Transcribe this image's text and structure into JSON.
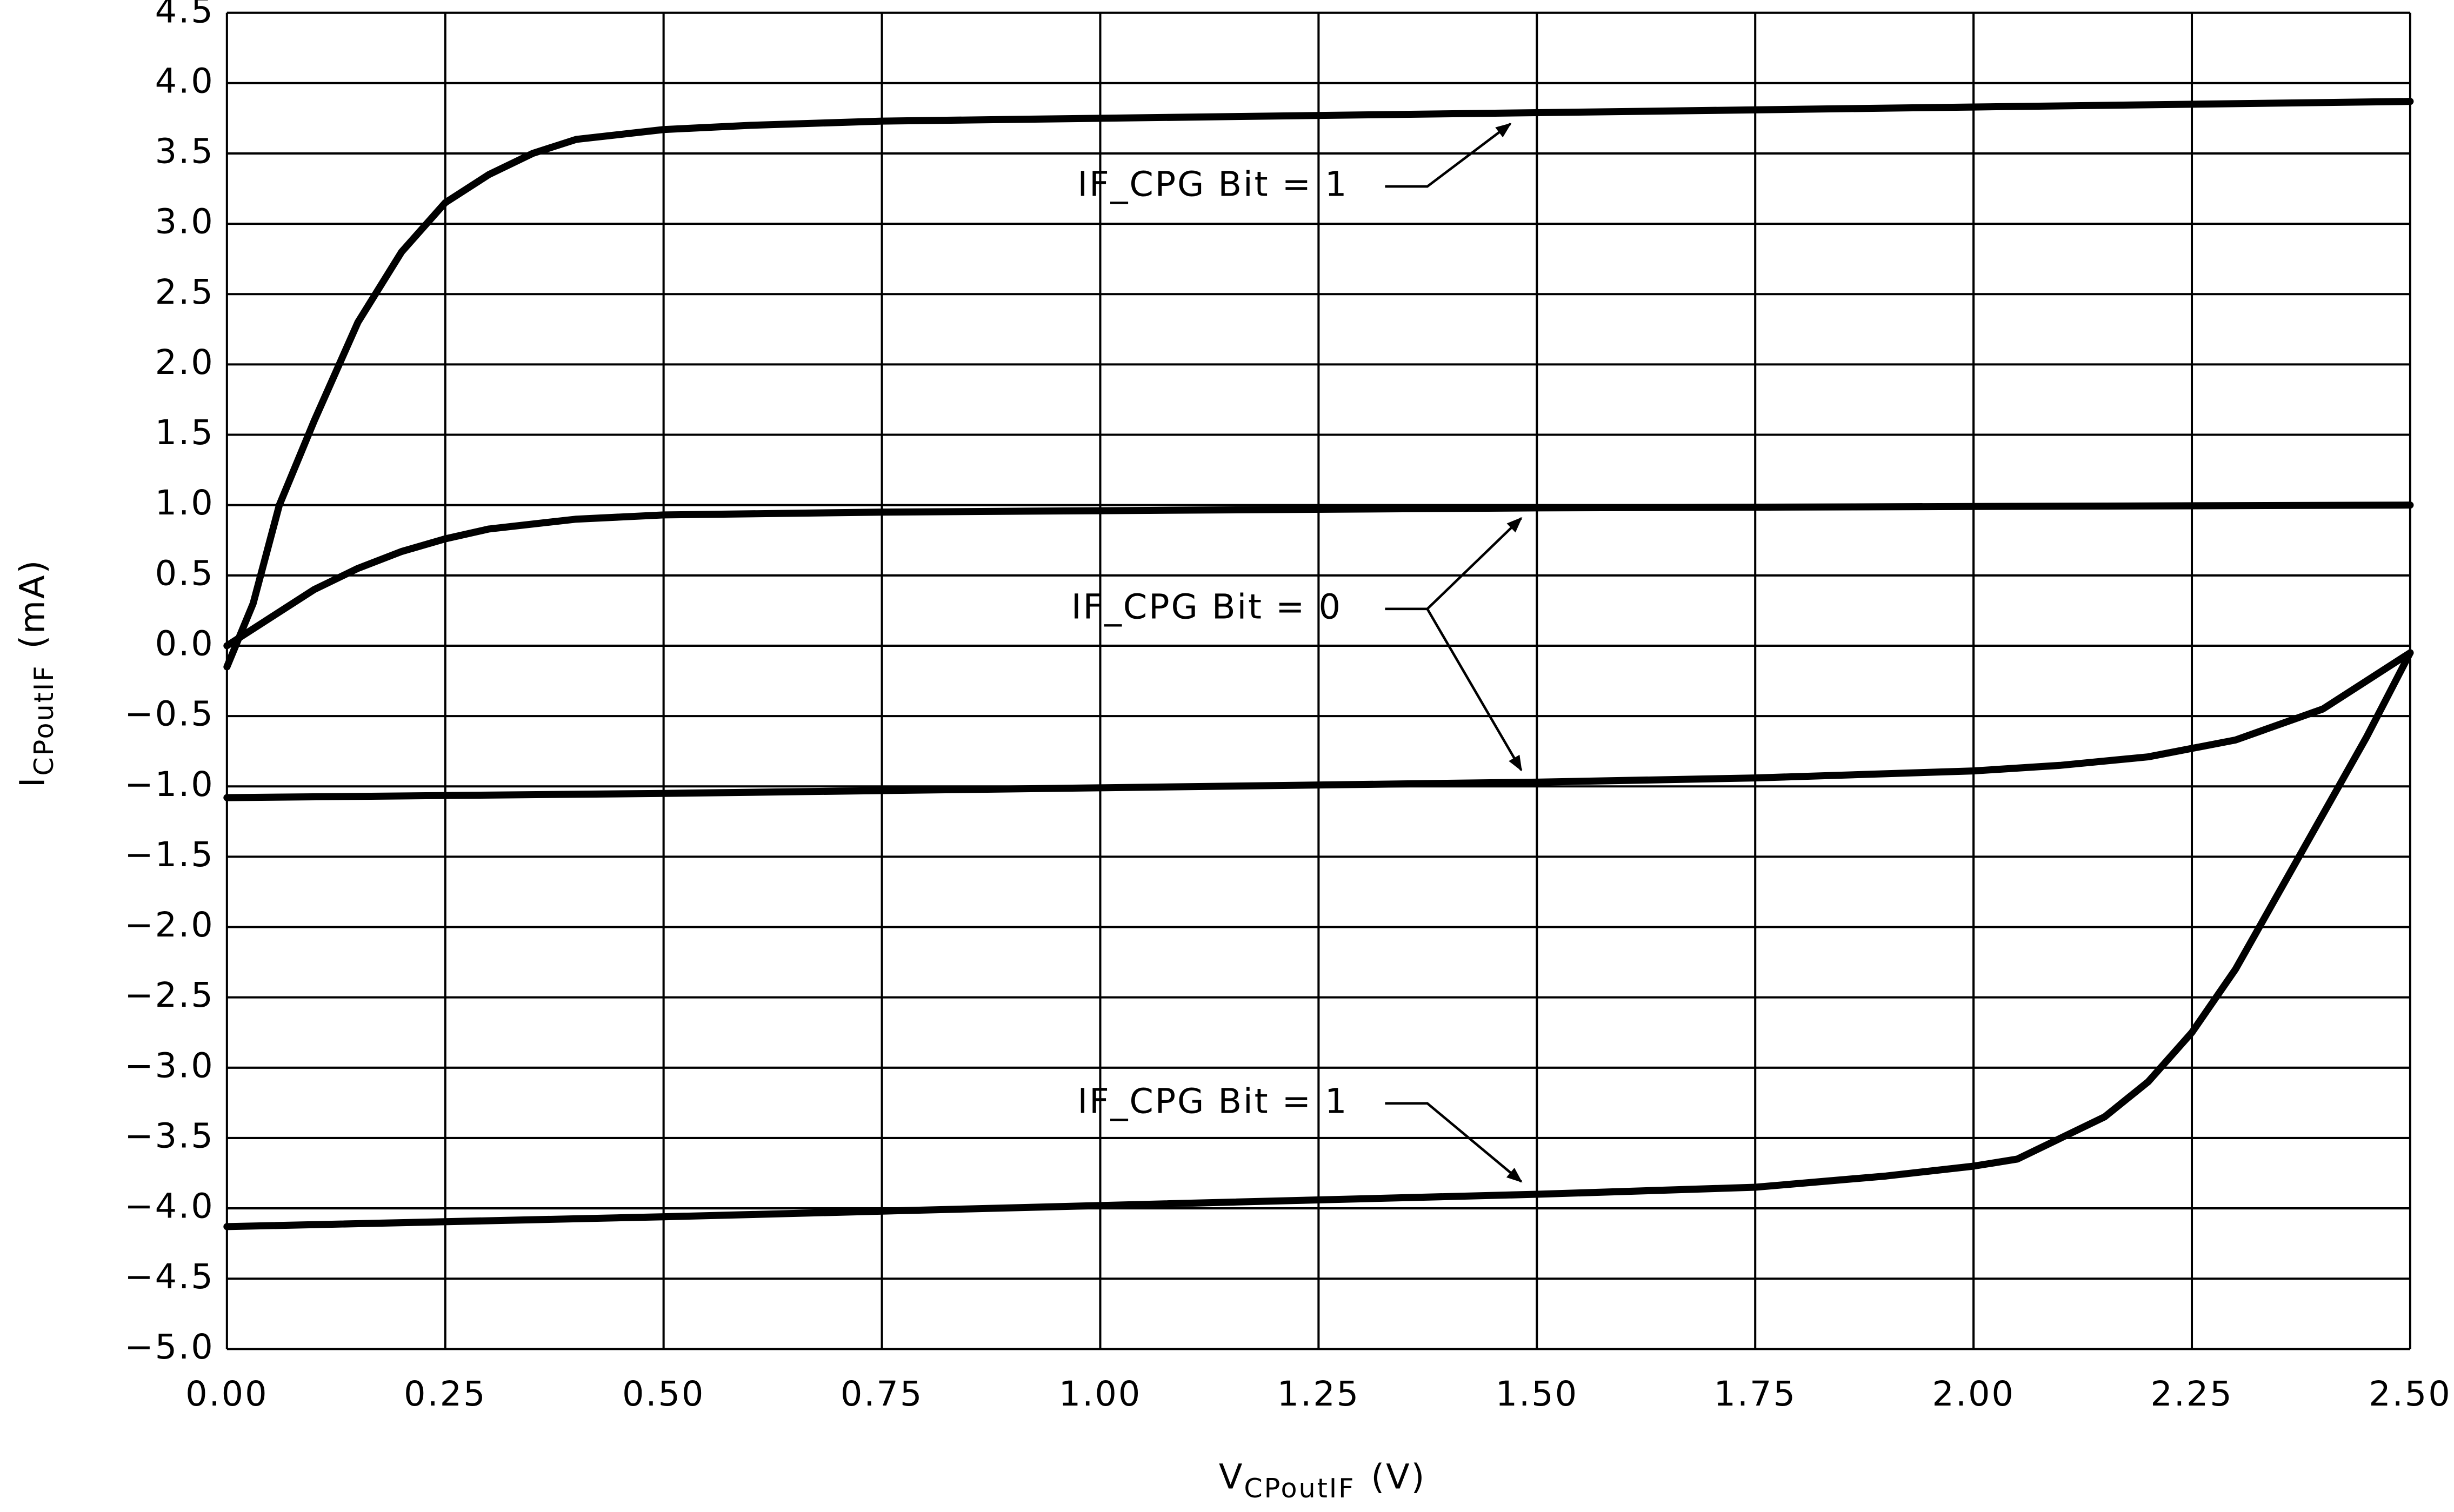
{
  "chart_data": {
    "type": "line",
    "x_label": {
      "main": "V",
      "sub": "CPoutIF",
      "unit": "(V)"
    },
    "y_label": {
      "main": "I",
      "sub": "CPoutIF",
      "unit": "(mA)"
    },
    "xlim": [
      0,
      2.5
    ],
    "ylim": [
      -5,
      4.5
    ],
    "xticks": [
      {
        "value": 0,
        "label": "0.00"
      },
      {
        "value": 0.25,
        "label": "0.25"
      },
      {
        "value": 0.5,
        "label": "0.50"
      },
      {
        "value": 0.75,
        "label": "0.75"
      },
      {
        "value": 1,
        "label": "1.00"
      },
      {
        "value": 1.25,
        "label": "1.25"
      },
      {
        "value": 1.5,
        "label": "1.50"
      },
      {
        "value": 1.75,
        "label": "1.75"
      },
      {
        "value": 2,
        "label": "2.00"
      },
      {
        "value": 2.25,
        "label": "2.25"
      },
      {
        "value": 2.5,
        "label": "2.50"
      }
    ],
    "yticks": [
      {
        "value": 4.5,
        "label": "4.5"
      },
      {
        "value": 4,
        "label": "4.0"
      },
      {
        "value": 3.5,
        "label": "3.5"
      },
      {
        "value": 3,
        "label": "3.0"
      },
      {
        "value": 2.5,
        "label": "2.5"
      },
      {
        "value": 2,
        "label": "2.0"
      },
      {
        "value": 1.5,
        "label": "1.5"
      },
      {
        "value": 1,
        "label": "1.0"
      },
      {
        "value": 0.5,
        "label": "0.5"
      },
      {
        "value": 0,
        "label": "0.0"
      },
      {
        "value": -0.5,
        "label": "−0.5"
      },
      {
        "value": -1,
        "label": "−1.0"
      },
      {
        "value": -1.5,
        "label": "−1.5"
      },
      {
        "value": -2,
        "label": "−2.0"
      },
      {
        "value": -2.5,
        "label": "−2.5"
      },
      {
        "value": -3,
        "label": "−3.0"
      },
      {
        "value": -3.5,
        "label": "−3.5"
      },
      {
        "value": -4,
        "label": "−4.0"
      },
      {
        "value": -4.5,
        "label": "−4.5"
      },
      {
        "value": -5,
        "label": "−5.0"
      }
    ],
    "grid": true,
    "series": [
      {
        "color": "#000000",
        "x": [
          0,
          0.03,
          0.06,
          0.1,
          0.15,
          0.2,
          0.25,
          0.3,
          0.35,
          0.4,
          0.5,
          0.6,
          0.75,
          1.0,
          1.5,
          2.0,
          2.5
        ],
        "values": [
          -0.15,
          0.3,
          1.0,
          1.6,
          2.3,
          2.8,
          3.15,
          3.35,
          3.5,
          3.6,
          3.67,
          3.7,
          3.73,
          3.75,
          3.79,
          3.83,
          3.87
        ]
      },
      {
        "color": "#000000",
        "x": [
          0,
          0.05,
          0.1,
          0.15,
          0.2,
          0.25,
          0.3,
          0.4,
          0.5,
          0.75,
          1.0,
          1.5,
          2.0,
          2.5
        ],
        "values": [
          0.0,
          0.2,
          0.4,
          0.55,
          0.67,
          0.76,
          0.83,
          0.9,
          0.93,
          0.95,
          0.96,
          0.98,
          0.99,
          1.0
        ]
      },
      {
        "color": "#000000",
        "x": [
          0,
          0.5,
          1.0,
          1.5,
          1.75,
          2.0,
          2.1,
          2.2,
          2.3,
          2.4,
          2.5
        ],
        "values": [
          -1.08,
          -1.05,
          -1.01,
          -0.97,
          -0.94,
          -0.89,
          -0.85,
          -0.79,
          -0.67,
          -0.45,
          -0.05
        ]
      },
      {
        "color": "#000000",
        "x": [
          0,
          0.5,
          1.0,
          1.5,
          1.75,
          1.9,
          2.0,
          2.05,
          2.1,
          2.15,
          2.2,
          2.25,
          2.3,
          2.35,
          2.4,
          2.45,
          2.5
        ],
        "values": [
          -4.13,
          -4.06,
          -3.98,
          -3.9,
          -3.85,
          -3.77,
          -3.7,
          -3.65,
          -3.5,
          -3.35,
          -3.1,
          -2.75,
          -2.3,
          -1.75,
          -1.2,
          -0.65,
          -0.05
        ]
      }
    ],
    "annotations": [
      "IF_CPG Bit = 1",
      "IF_CPG Bit = 0",
      "IF_CPG Bit = 1"
    ]
  }
}
